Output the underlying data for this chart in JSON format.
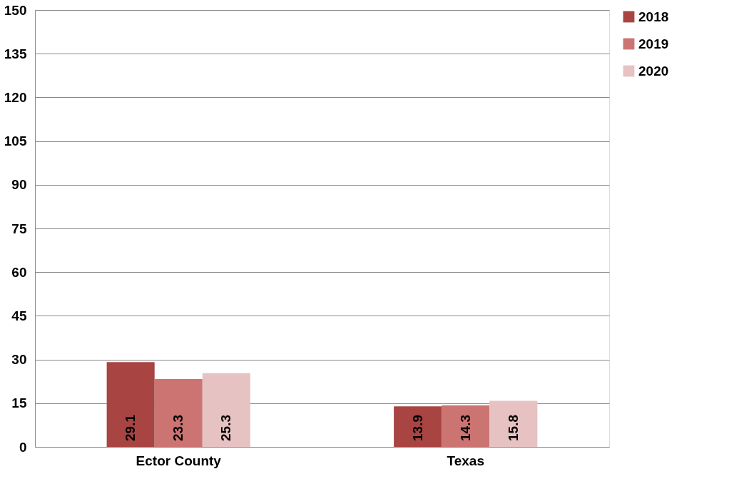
{
  "chart_data": {
    "type": "bar",
    "categories": [
      "Ector County",
      "Texas"
    ],
    "series": [
      {
        "name": "2018",
        "color": "#a84442",
        "values": [
          29.1,
          13.9
        ]
      },
      {
        "name": "2019",
        "color": "#cc7472",
        "values": [
          23.3,
          14.3
        ]
      },
      {
        "name": "2020",
        "color": "#e6c2c2",
        "values": [
          25.3,
          15.8
        ]
      }
    ],
    "ylim": [
      0,
      150
    ],
    "yticks": [
      0,
      15,
      30,
      45,
      60,
      75,
      90,
      105,
      120,
      135,
      150
    ],
    "grid": "y",
    "legend": "right",
    "data_labels": true
  }
}
